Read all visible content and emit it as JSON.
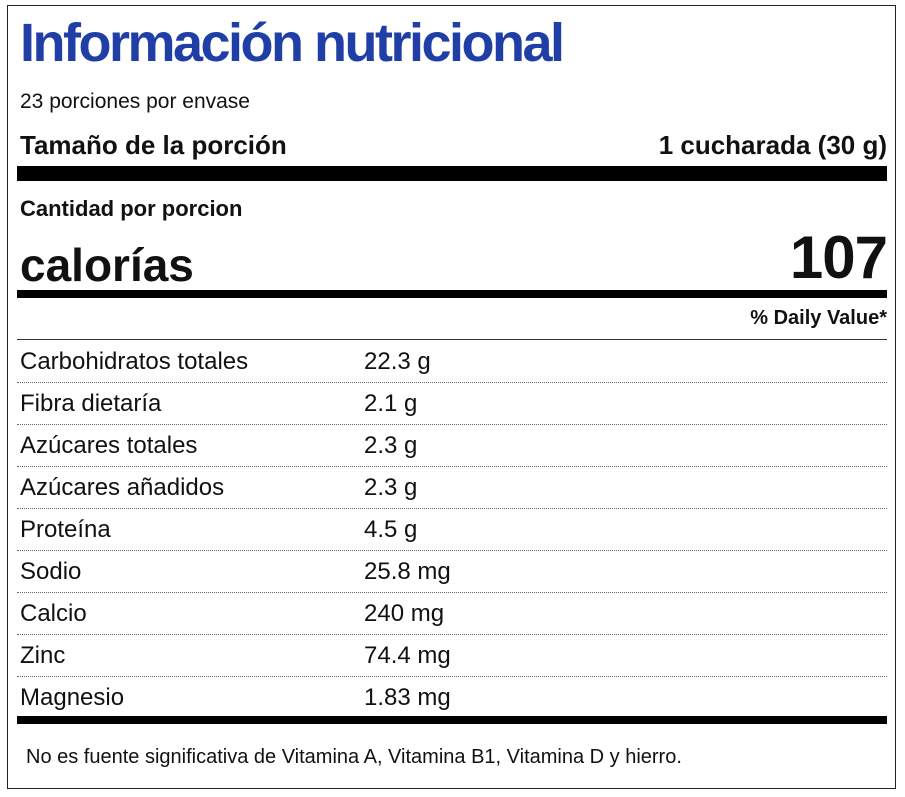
{
  "title": "Información nutricional",
  "servings_per_container": "23 porciones por envase",
  "serving_size": {
    "label": "Tamaño de la porción",
    "value": "1 cucharada (30 g)"
  },
  "amount_per_serving": "Cantidad por porcion",
  "calories": {
    "label": "calorías",
    "value": "107"
  },
  "daily_value_header": "% Daily Value*",
  "nutrients": [
    {
      "name": "Carbohidratos totales",
      "amount": "22.3 g"
    },
    {
      "name": "Fibra dietaría",
      "amount": "2.1 g"
    },
    {
      "name": "Azúcares totales",
      "amount": "2.3 g"
    },
    {
      "name": "Azúcares añadidos",
      "amount": "2.3 g"
    },
    {
      "name": "Proteína",
      "amount": "4.5 g"
    },
    {
      "name": "Sodio",
      "amount": "25.8 mg"
    },
    {
      "name": "Calcio",
      "amount": "240 mg"
    },
    {
      "name": "Zinc",
      "amount": "74.4 mg"
    },
    {
      "name": "Magnesio",
      "amount": "1.83 mg"
    }
  ],
  "footnote": "No es fuente significativa de Vitamina A, Vitamina B1, Vitamina D y hierro.",
  "colors": {
    "title": "#1f3fa6",
    "text": "#111111",
    "rule": "#000000"
  }
}
